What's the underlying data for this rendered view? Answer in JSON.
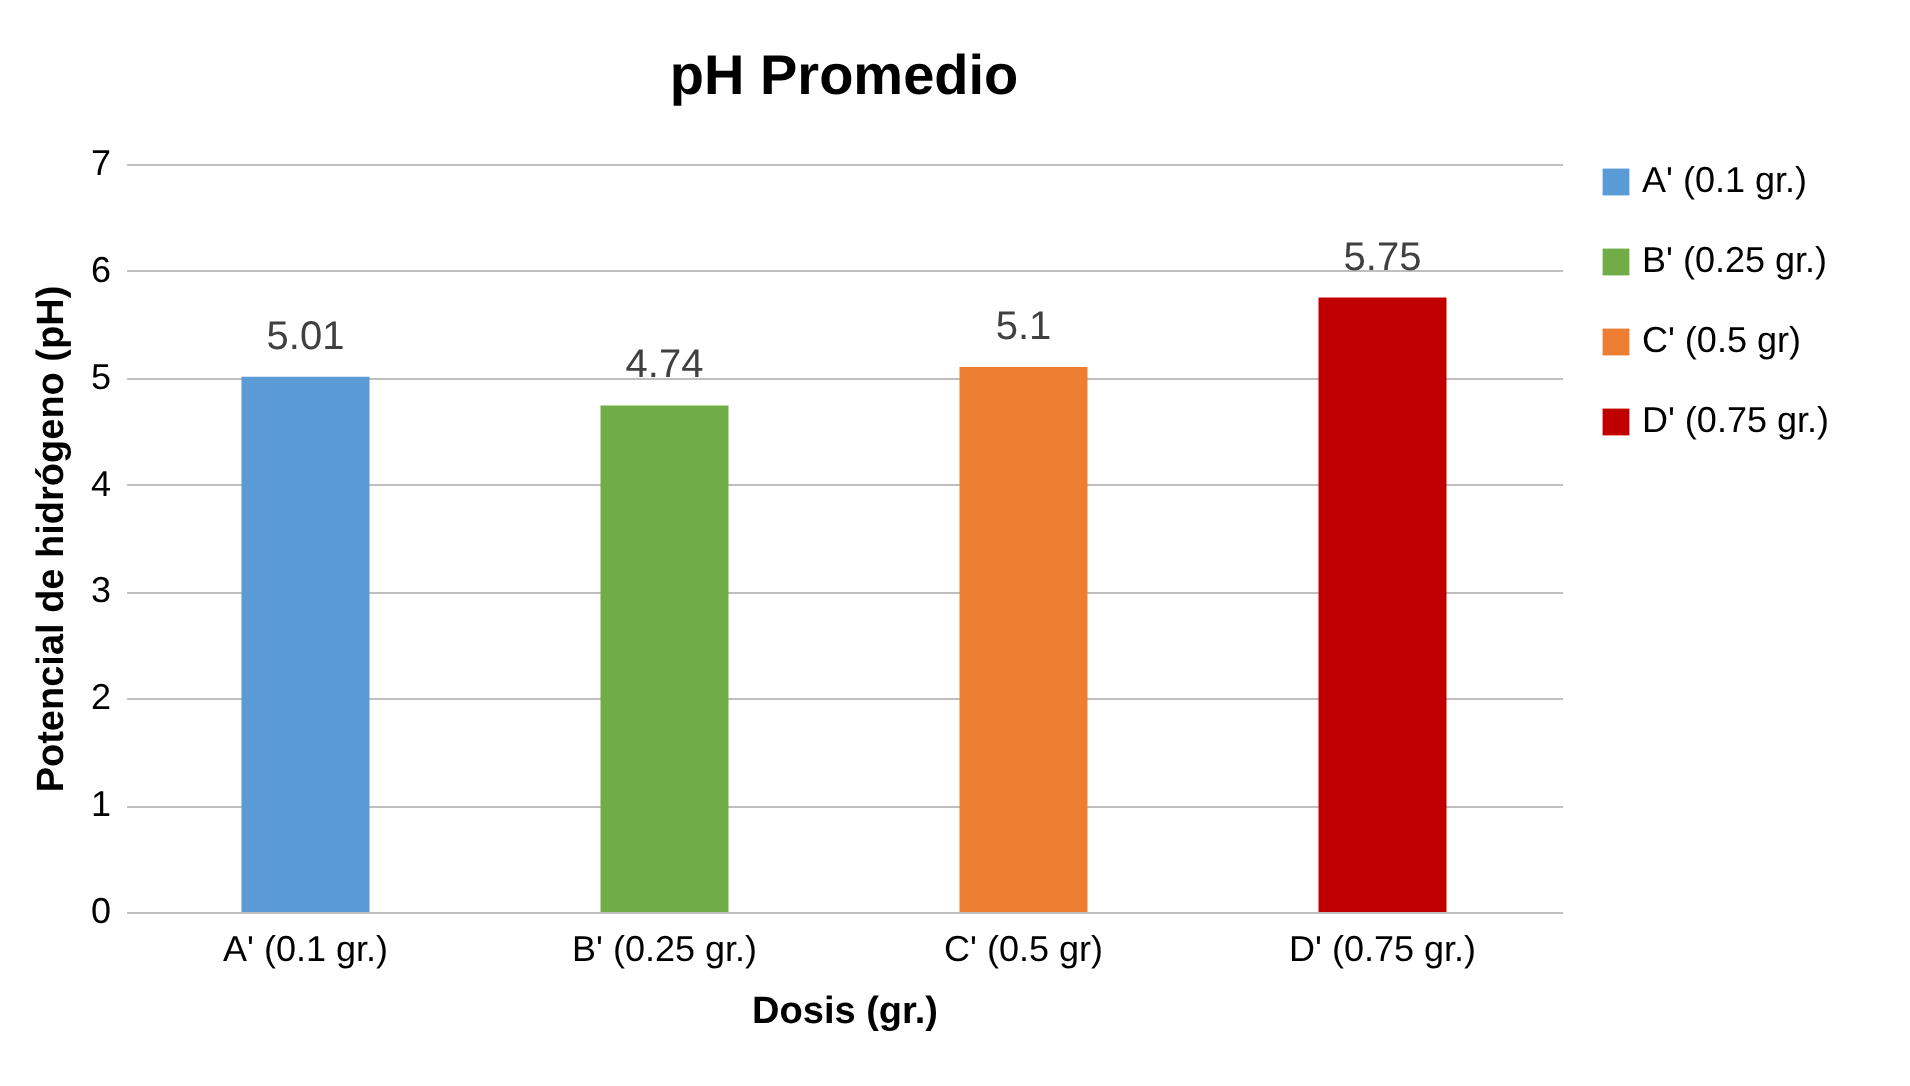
{
  "chart_data": {
    "type": "bar",
    "title": "pH Promedio",
    "xlabel": "Dosis (gr.)",
    "ylabel": "Potencial de hidrógeno (pH)",
    "categories": [
      "A' (0.1 gr.)",
      "B' (0.25 gr.)",
      "C' (0.5 gr)",
      "D' (0.75 gr.)"
    ],
    "series": [
      {
        "name": "A' (0.1 gr.)",
        "color": "#5b9bd5",
        "values": [
          5.01,
          null,
          null,
          null
        ]
      },
      {
        "name": "B' (0.25 gr.)",
        "color": "#70ad47",
        "values": [
          null,
          4.74,
          null,
          null
        ]
      },
      {
        "name": "C' (0.5 gr)",
        "color": "#ed7d31",
        "values": [
          null,
          null,
          5.1,
          null
        ]
      },
      {
        "name": "D' (0.75 gr.)",
        "color": "#c00000",
        "values": [
          null,
          null,
          null,
          5.75
        ]
      }
    ],
    "ylim": [
      0,
      7
    ],
    "yticks": [
      0,
      1,
      2,
      3,
      4,
      5,
      6,
      7
    ],
    "grid": "y",
    "legend": "right",
    "data_labels": true
  }
}
